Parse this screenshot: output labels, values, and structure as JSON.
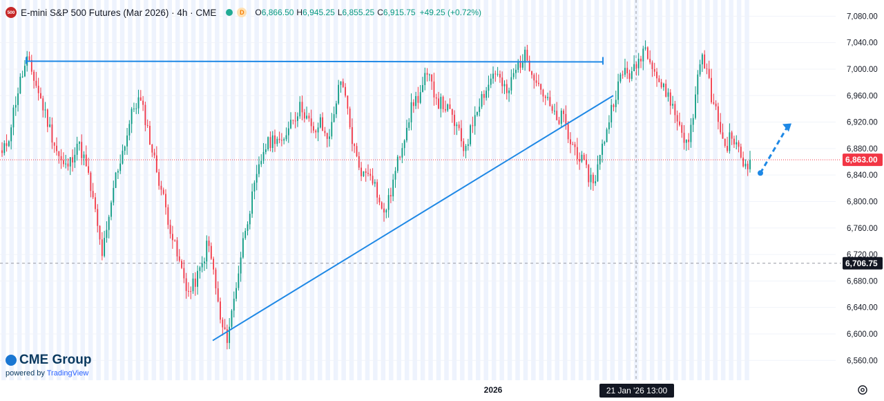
{
  "legend": {
    "badge": "500",
    "title": "E-mini S&P 500 Futures (Mar 2026) · 4h · CME",
    "status_badge": "D",
    "open_key": "O",
    "open": "6,866.50",
    "high_key": "H",
    "high": "6,945.25",
    "low_key": "L",
    "low": "6,855.25",
    "close_key": "C",
    "close": "6,915.75",
    "change": "+49.25 (+0.72%)"
  },
  "watermark": {
    "brand": "CME Group",
    "powered_prefix": "powered by",
    "powered_name": "TradingView"
  },
  "chart_data": {
    "type": "candlestick",
    "y_axis": {
      "range": [
        6530,
        7095
      ],
      "ticks": [
        6560,
        6600,
        6640,
        6680,
        6720,
        6760,
        6800,
        6840,
        6880,
        6920,
        6960,
        7000,
        7040,
        7080
      ],
      "tick_labels": [
        "6,560.00",
        "6,600.00",
        "6,640.00",
        "6,680.00",
        "6,720.00",
        "6,760.00",
        "6,800.00",
        "6,840.00",
        "6,880.00",
        "6,920.00",
        "6,960.00",
        "7,000.00",
        "7,040.00",
        "7,080.00"
      ]
    },
    "x_axis": {
      "label_2026": "2026",
      "crosshair_label": "21 Jan '26   13:00"
    },
    "last_price": 6863.0,
    "last_price_label": "6,863.00",
    "crosshair_price": 6706.75,
    "crosshair_price_label": "6,706.75",
    "resistance_price": 7012,
    "trendline": {
      "start_price": 6590,
      "end_price": 6960
    },
    "projection": {
      "from": 6843,
      "to": 6918
    },
    "price_path": [
      6870,
      6895,
      6945,
      6985,
      7012,
      6990,
      6960,
      6930,
      6900,
      6870,
      6850,
      6860,
      6890,
      6870,
      6830,
      6780,
      6720,
      6760,
      6830,
      6865,
      6900,
      6940,
      6955,
      6925,
      6880,
      6840,
      6800,
      6760,
      6720,
      6690,
      6660,
      6680,
      6700,
      6740,
      6690,
      6620,
      6590,
      6640,
      6700,
      6760,
      6800,
      6840,
      6880,
      6890,
      6900,
      6880,
      6920,
      6930,
      6945,
      6925,
      6900,
      6920,
      6895,
      6915,
      6980,
      6960,
      6900,
      6860,
      6840,
      6850,
      6820,
      6780,
      6800,
      6840,
      6880,
      6920,
      6950,
      6960,
      6990,
      6975,
      6950,
      6945,
      6930,
      6910,
      6880,
      6900,
      6940,
      6960,
      6975,
      7000,
      6980,
      6960,
      6990,
      7010,
      7020,
      7000,
      6980,
      6960,
      6940,
      6920,
      6930,
      6890,
      6880,
      6860,
      6840,
      6830,
      6870,
      6910,
      6950,
      6980,
      7000,
      6990,
      7010,
      7035,
      7020,
      6990,
      6970,
      6960,
      6930,
      6910,
      6880,
      6940,
      7020,
      7000,
      6950,
      6920,
      6880,
      6900,
      6880,
      6855,
      6860
    ]
  }
}
